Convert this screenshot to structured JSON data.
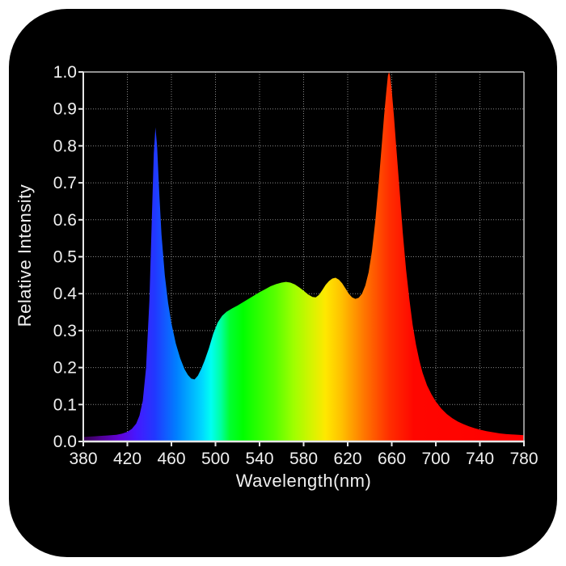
{
  "figure": {
    "kind": "LED grow light spectrum product chart",
    "page_background": "#ffffff",
    "panel_color": "#000000",
    "text_color": "#f0f0f0",
    "grid_color": "#a0a0a0",
    "axis_color": "#e6e6e6",
    "secondary_axis_color": "#c0c0c0"
  },
  "chart_data": {
    "type": "area",
    "title": "",
    "xlabel": "Wavelength(nm)",
    "ylabel": "Relative Intensity",
    "xlim": [
      380,
      780
    ],
    "ylim": [
      0.0,
      1.0
    ],
    "grid": true,
    "legend": false,
    "x_tick_labels": [
      "380",
      "420",
      "460",
      "500",
      "540",
      "580",
      "620",
      "660",
      "700",
      "740",
      "780"
    ],
    "y_tick_labels": [
      "0.0",
      "0.1",
      "0.2",
      "0.3",
      "0.4",
      "0.5",
      "0.6",
      "0.7",
      "0.8",
      "0.9",
      "1.0"
    ],
    "peaks": [
      {
        "wavelength": 445,
        "intensity": 0.85,
        "band": "blue"
      },
      {
        "wavelength": 565,
        "intensity": 0.43,
        "band": "green-yellow"
      },
      {
        "wavelength": 608,
        "intensity": 0.44,
        "band": "orange"
      },
      {
        "wavelength": 657,
        "intensity": 1.0,
        "band": "red"
      }
    ],
    "spectrum_gradient_stops": [
      [
        380,
        "#33004d"
      ],
      [
        395,
        "#4f0090"
      ],
      [
        412,
        "#6202d6"
      ],
      [
        428,
        "#4618ff"
      ],
      [
        445,
        "#2138ff"
      ],
      [
        465,
        "#0080ff"
      ],
      [
        488,
        "#00d8ff"
      ],
      [
        496,
        "#00fff2"
      ],
      [
        505,
        "#00ffa0"
      ],
      [
        513,
        "#00ff30"
      ],
      [
        525,
        "#00ff00"
      ],
      [
        535,
        "#20ff00"
      ],
      [
        554,
        "#58ff00"
      ],
      [
        571,
        "#9eff00"
      ],
      [
        588,
        "#d8f300"
      ],
      [
        600,
        "#ffe800"
      ],
      [
        614,
        "#ffc200"
      ],
      [
        636,
        "#ff7300"
      ],
      [
        658,
        "#ff2e00"
      ],
      [
        680,
        "#ff0600"
      ],
      [
        780,
        "#ff0000"
      ]
    ],
    "points": [
      [
        380,
        0.012
      ],
      [
        385,
        0.013
      ],
      [
        390,
        0.014
      ],
      [
        395,
        0.015
      ],
      [
        400,
        0.016
      ],
      [
        405,
        0.017
      ],
      [
        410,
        0.018
      ],
      [
        415,
        0.021
      ],
      [
        420,
        0.026
      ],
      [
        424,
        0.034
      ],
      [
        428,
        0.048
      ],
      [
        431,
        0.07
      ],
      [
        434,
        0.11
      ],
      [
        437,
        0.2
      ],
      [
        440,
        0.38
      ],
      [
        442,
        0.58
      ],
      [
        444,
        0.78
      ],
      [
        445.5,
        0.85
      ],
      [
        447,
        0.8
      ],
      [
        449,
        0.67
      ],
      [
        451,
        0.56
      ],
      [
        454,
        0.45
      ],
      [
        457,
        0.375
      ],
      [
        460,
        0.32
      ],
      [
        464,
        0.265
      ],
      [
        468,
        0.225
      ],
      [
        472,
        0.195
      ],
      [
        475,
        0.18
      ],
      [
        478,
        0.17
      ],
      [
        481,
        0.168
      ],
      [
        484,
        0.178
      ],
      [
        487,
        0.196
      ],
      [
        490,
        0.218
      ],
      [
        494,
        0.252
      ],
      [
        498,
        0.292
      ],
      [
        502,
        0.322
      ],
      [
        506,
        0.34
      ],
      [
        510,
        0.351
      ],
      [
        515,
        0.36
      ],
      [
        520,
        0.368
      ],
      [
        525,
        0.377
      ],
      [
        530,
        0.386
      ],
      [
        535,
        0.395
      ],
      [
        540,
        0.404
      ],
      [
        545,
        0.412
      ],
      [
        550,
        0.42
      ],
      [
        555,
        0.426
      ],
      [
        560,
        0.43
      ],
      [
        564,
        0.432
      ],
      [
        568,
        0.43
      ],
      [
        572,
        0.425
      ],
      [
        576,
        0.417
      ],
      [
        580,
        0.408
      ],
      [
        584,
        0.398
      ],
      [
        588,
        0.391
      ],
      [
        591,
        0.39
      ],
      [
        594,
        0.397
      ],
      [
        597,
        0.41
      ],
      [
        600,
        0.424
      ],
      [
        603,
        0.434
      ],
      [
        606,
        0.441
      ],
      [
        609,
        0.443
      ],
      [
        612,
        0.438
      ],
      [
        615,
        0.428
      ],
      [
        618,
        0.414
      ],
      [
        621,
        0.4
      ],
      [
        624,
        0.39
      ],
      [
        627,
        0.386
      ],
      [
        630,
        0.389
      ],
      [
        633,
        0.4
      ],
      [
        636,
        0.422
      ],
      [
        639,
        0.458
      ],
      [
        642,
        0.515
      ],
      [
        645,
        0.595
      ],
      [
        648,
        0.695
      ],
      [
        651,
        0.805
      ],
      [
        653,
        0.88
      ],
      [
        655,
        0.945
      ],
      [
        656.5,
        0.99
      ],
      [
        657.5,
        1.0
      ],
      [
        658.5,
        0.99
      ],
      [
        660,
        0.95
      ],
      [
        662,
        0.88
      ],
      [
        664,
        0.8
      ],
      [
        667,
        0.685
      ],
      [
        670,
        0.565
      ],
      [
        673,
        0.465
      ],
      [
        676,
        0.385
      ],
      [
        679,
        0.315
      ],
      [
        682,
        0.262
      ],
      [
        685,
        0.22
      ],
      [
        688,
        0.186
      ],
      [
        692,
        0.152
      ],
      [
        696,
        0.128
      ],
      [
        700,
        0.108
      ],
      [
        705,
        0.089
      ],
      [
        710,
        0.074
      ],
      [
        715,
        0.063
      ],
      [
        720,
        0.054
      ],
      [
        725,
        0.047
      ],
      [
        730,
        0.041
      ],
      [
        735,
        0.036
      ],
      [
        740,
        0.032
      ],
      [
        746,
        0.028
      ],
      [
        752,
        0.025
      ],
      [
        758,
        0.022
      ],
      [
        764,
        0.02
      ],
      [
        770,
        0.019
      ],
      [
        775,
        0.018
      ],
      [
        780,
        0.017
      ]
    ]
  }
}
